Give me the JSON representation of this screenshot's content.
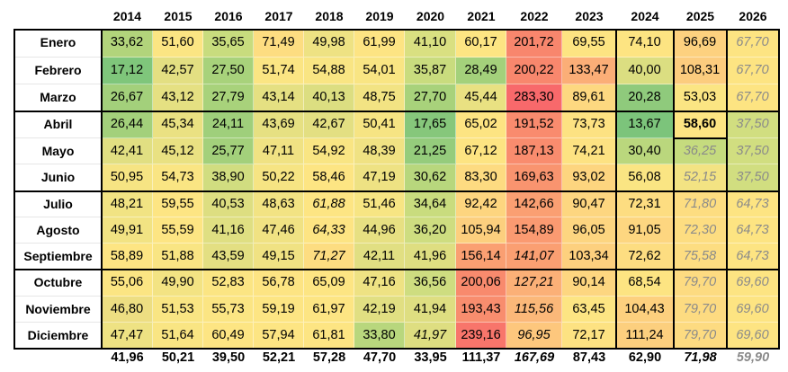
{
  "years": [
    "2014",
    "2015",
    "2016",
    "2017",
    "2018",
    "2019",
    "2020",
    "2021",
    "2022",
    "2023",
    "2024",
    "2025",
    "2026"
  ],
  "months": [
    "Enero",
    "Febrero",
    "Marzo",
    "Abril",
    "Mayo",
    "Junio",
    "Julio",
    "Agosto",
    "Septiembre",
    "Octubre",
    "Noviembre",
    "Diciembre"
  ],
  "rows": [
    [
      "33,62",
      "51,60",
      "35,65",
      "71,49",
      "49,98",
      "61,99",
      "41,10",
      "60,17",
      "201,72",
      "69,55",
      "74,10",
      "96,69",
      "67,70"
    ],
    [
      "17,12",
      "42,57",
      "27,50",
      "51,74",
      "54,88",
      "54,01",
      "35,87",
      "28,49",
      "200,22",
      "133,47",
      "40,00",
      "108,31",
      "67,70"
    ],
    [
      "26,67",
      "43,12",
      "27,79",
      "43,14",
      "40,13",
      "48,75",
      "27,70",
      "45,44",
      "283,30",
      "89,61",
      "20,28",
      "53,03",
      "67,70"
    ],
    [
      "26,44",
      "45,34",
      "24,11",
      "43,69",
      "42,67",
      "50,41",
      "17,65",
      "65,02",
      "191,52",
      "73,73",
      "13,67",
      "58,60",
      "37,50"
    ],
    [
      "42,41",
      "45,12",
      "25,77",
      "47,11",
      "54,92",
      "48,39",
      "21,25",
      "67,12",
      "187,13",
      "74,21",
      "30,40",
      "36,25",
      "37,50"
    ],
    [
      "50,95",
      "54,73",
      "38,90",
      "50,22",
      "58,46",
      "47,19",
      "30,62",
      "83,30",
      "169,63",
      "93,02",
      "56,08",
      "52,15",
      "37,50"
    ],
    [
      "48,21",
      "59,55",
      "40,53",
      "48,63",
      "61,88",
      "51,46",
      "34,64",
      "92,42",
      "142,66",
      "90,47",
      "72,31",
      "71,80",
      "64,73"
    ],
    [
      "49,91",
      "55,59",
      "41,16",
      "47,46",
      "64,33",
      "44,96",
      "36,20",
      "105,94",
      "154,89",
      "96,05",
      "91,05",
      "72,30",
      "64,73"
    ],
    [
      "58,89",
      "51,88",
      "43,59",
      "49,15",
      "71,27",
      "42,11",
      "41,96",
      "156,14",
      "141,07",
      "103,34",
      "72,62",
      "75,58",
      "64,73"
    ],
    [
      "55,06",
      "49,90",
      "52,83",
      "56,78",
      "65,09",
      "47,16",
      "36,56",
      "200,06",
      "127,21",
      "90,14",
      "68,54",
      "79,70",
      "69,60"
    ],
    [
      "46,80",
      "51,53",
      "55,73",
      "59,19",
      "61,97",
      "42,19",
      "41,94",
      "193,43",
      "115,56",
      "63,45",
      "104,43",
      "79,70",
      "69,60"
    ],
    [
      "47,47",
      "51,64",
      "60,49",
      "57,94",
      "61,81",
      "33,80",
      "41,97",
      "239,16",
      "96,95",
      "72,17",
      "111,24",
      "79,70",
      "69,60"
    ]
  ],
  "cell_colors": [
    [
      "#b2d47b",
      "#fbe583",
      "#c8dc7e",
      "#fddd81",
      "#eee283",
      "#fde483",
      "#d9e081",
      "#fde583",
      "#f8866d",
      "#fde482",
      "#fde482",
      "#fdd17f",
      "#fde482"
    ],
    [
      "#7fc67b",
      "#e3df82",
      "#a8d27b",
      "#fbe583",
      "#f9e583",
      "#f9e583",
      "#c9dc7e",
      "#a4d17b",
      "#f8876d",
      "#fbae77",
      "#dbde81",
      "#fccc7e",
      "#fde482"
    ],
    [
      "#a3d07b",
      "#e5e082",
      "#a8d27b",
      "#e5e082",
      "#dcde81",
      "#f2e383",
      "#a8d27b",
      "#e9e182",
      "#f8696b",
      "#fdd880",
      "#8fca7c",
      "#fbe583",
      "#fde482"
    ],
    [
      "#a3d07b",
      "#eae182",
      "#9fcf7b",
      "#e6e082",
      "#e3df82",
      "#f6e483",
      "#86c77b",
      "#fde482",
      "#f98b6e",
      "#fde282",
      "#7cc47b",
      "#fde583",
      "#d1de80"
    ],
    [
      "#e1df82",
      "#e9e182",
      "#a3d07b",
      "#f0e283",
      "#f9e583",
      "#f0e283",
      "#95cc7c",
      "#fde482",
      "#f98c6e",
      "#fde282",
      "#bad77d",
      "#c5db7e",
      "#d1de80"
    ],
    [
      "#f6e483",
      "#fae583",
      "#d1dd80",
      "#f6e483",
      "#fde583",
      "#eee283",
      "#b8d77d",
      "#fddb81",
      "#f9946f",
      "#fdd57f",
      "#fae583",
      "#f3e383",
      "#d1de80"
    ],
    [
      "#f1e383",
      "#fde583",
      "#ddde81",
      "#f2e383",
      "#fde583",
      "#f7e583",
      "#c9dc7e",
      "#fdd57f",
      "#fa9f72",
      "#fdd680",
      "#fddd81",
      "#fddd81",
      "#fde482"
    ],
    [
      "#f2e383",
      "#fde583",
      "#dfdf82",
      "#f0e283",
      "#fde483",
      "#e7e082",
      "#cedd80",
      "#fccf7e",
      "#fa9a71",
      "#fdd580",
      "#fdd680",
      "#fddd81",
      "#fde482"
    ],
    [
      "#fde583",
      "#f9e583",
      "#e3df82",
      "#f0e283",
      "#fddd81",
      "#e1df82",
      "#dede81",
      "#fa9f72",
      "#fa9f72",
      "#fdd07e",
      "#fddd81",
      "#fddd81",
      "#fde482"
    ],
    [
      "#fbe583",
      "#f3e383",
      "#fbe583",
      "#fde483",
      "#fde583",
      "#eee283",
      "#cedd80",
      "#f88a6d",
      "#fbb077",
      "#fdd680",
      "#fde482",
      "#fddb81",
      "#fde482"
    ],
    [
      "#edde82",
      "#f9e583",
      "#fbe583",
      "#fde583",
      "#fde583",
      "#e1df82",
      "#dede81",
      "#f88d6e",
      "#fbb879",
      "#fde583",
      "#fdd07e",
      "#fddb81",
      "#fde482"
    ],
    [
      "#eee283",
      "#f9e583",
      "#fde583",
      "#fde583",
      "#fde583",
      "#b8d77d",
      "#dede81",
      "#f8756b",
      "#fdc77d",
      "#fde282",
      "#fccf7e",
      "#fddb81",
      "#fde482"
    ]
  ],
  "cell_styles": [
    [
      "n",
      "n",
      "n",
      "n",
      "n",
      "n",
      "n",
      "n",
      "n",
      "n",
      "n",
      "n",
      "p"
    ],
    [
      "n",
      "n",
      "n",
      "n",
      "n",
      "n",
      "n",
      "n",
      "n",
      "n",
      "n",
      "n",
      "p"
    ],
    [
      "n",
      "n",
      "n",
      "n",
      "n",
      "n",
      "n",
      "n",
      "n",
      "n",
      "n",
      "n",
      "p"
    ],
    [
      "n",
      "n",
      "n",
      "n",
      "n",
      "n",
      "n",
      "n",
      "n",
      "n",
      "n",
      "b",
      "p"
    ],
    [
      "n",
      "n",
      "n",
      "n",
      "n",
      "n",
      "n",
      "n",
      "n",
      "n",
      "n",
      "p",
      "p"
    ],
    [
      "n",
      "n",
      "n",
      "n",
      "n",
      "n",
      "n",
      "n",
      "n",
      "n",
      "n",
      "p",
      "p"
    ],
    [
      "n",
      "n",
      "n",
      "n",
      "i",
      "n",
      "n",
      "n",
      "n",
      "n",
      "n",
      "p",
      "p"
    ],
    [
      "n",
      "n",
      "n",
      "n",
      "i",
      "n",
      "n",
      "n",
      "n",
      "n",
      "n",
      "p",
      "p"
    ],
    [
      "n",
      "n",
      "n",
      "n",
      "i",
      "n",
      "n",
      "n",
      "i",
      "n",
      "n",
      "p",
      "p"
    ],
    [
      "n",
      "n",
      "n",
      "n",
      "n",
      "n",
      "n",
      "n",
      "i",
      "n",
      "n",
      "p",
      "p"
    ],
    [
      "n",
      "n",
      "n",
      "n",
      "n",
      "n",
      "n",
      "n",
      "i",
      "n",
      "n",
      "p",
      "p"
    ],
    [
      "n",
      "n",
      "n",
      "n",
      "n",
      "n",
      "i",
      "n",
      "i",
      "n",
      "n",
      "p",
      "p"
    ]
  ],
  "totals": [
    "41,96",
    "50,21",
    "39,50",
    "52,21",
    "57,28",
    "47,70",
    "33,95",
    "111,37",
    "167,69",
    "87,43",
    "62,90",
    "71,98",
    "59,90"
  ],
  "total_styles": [
    "n",
    "n",
    "n",
    "n",
    "n",
    "n",
    "n",
    "n",
    "i",
    "n",
    "n",
    "i",
    "p"
  ]
}
